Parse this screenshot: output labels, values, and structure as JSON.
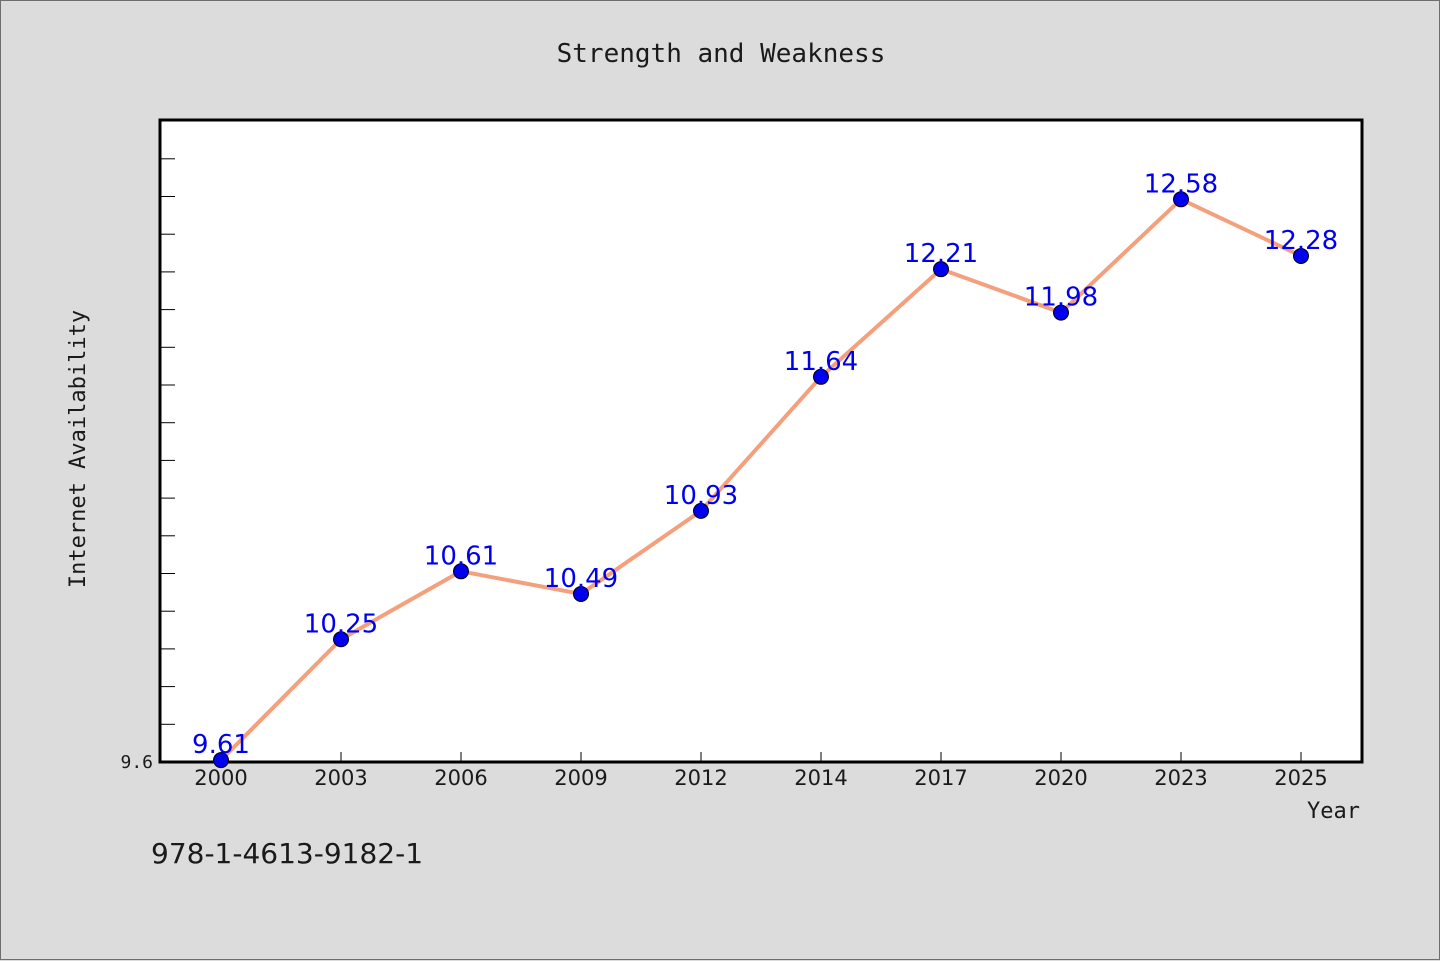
{
  "chart_data": {
    "type": "line",
    "title": "Strength and Weakness",
    "xlabel": "Year",
    "ylabel": "Internet Availability",
    "x": [
      "2000",
      "2003",
      "2006",
      "2009",
      "2012",
      "2014",
      "2017",
      "2020",
      "2023",
      "2025"
    ],
    "series": [
      {
        "values": [
          9.61,
          10.25,
          10.61,
          10.49,
          10.93,
          11.64,
          12.21,
          11.98,
          12.58,
          12.28
        ]
      }
    ],
    "data_labels": [
      "9.61",
      "10.25",
      "10.61",
      "10.49",
      "10.93",
      "11.64",
      "12.21",
      "11.98",
      "12.58",
      "12.28"
    ],
    "y_tick_labels": [
      "9.6"
    ],
    "ylim": [
      9.6,
      13.0
    ],
    "grid": false,
    "line_color": "#f4a07c",
    "marker_color": "#0000ee",
    "label_color": "#0000ee"
  },
  "caption": "978-1-4613-9182-1"
}
